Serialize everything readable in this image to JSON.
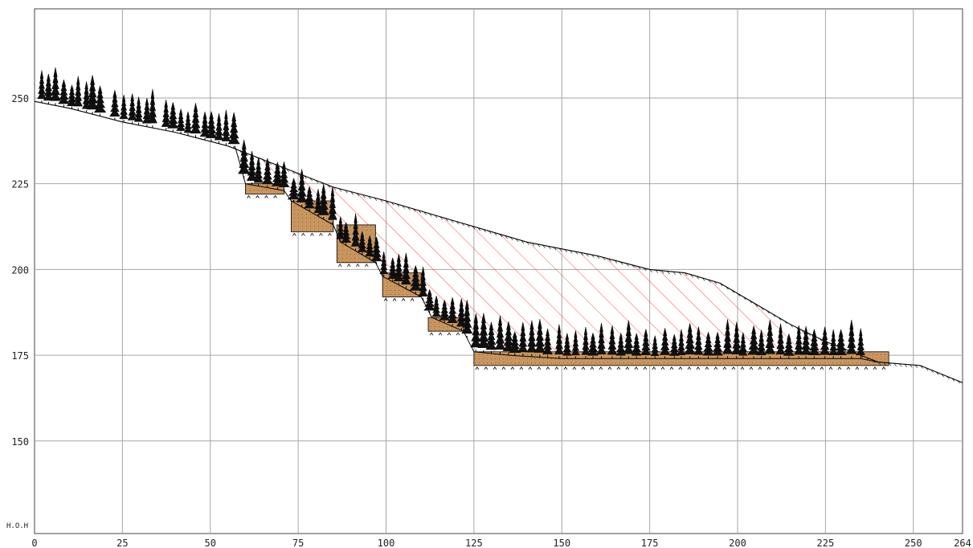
{
  "figure": {
    "height_label": "H.O.H",
    "x_ticks": [
      "0",
      "25",
      "50",
      "75",
      "100",
      "125",
      "150",
      "175",
      "200",
      "225",
      "250",
      "264"
    ],
    "y_ticks": [
      "150",
      "175",
      "200",
      "225",
      "250"
    ]
  },
  "chart_data": {
    "type": "cross-section",
    "x_range": [
      0,
      264
    ],
    "y_range": [
      123,
      276
    ],
    "grid": true,
    "existing_ground": [
      [
        0,
        249
      ],
      [
        10,
        247
      ],
      [
        25,
        243
      ],
      [
        40,
        240
      ],
      [
        55,
        236
      ],
      [
        70,
        230
      ],
      [
        85,
        224
      ],
      [
        100,
        220
      ],
      [
        120,
        214
      ],
      [
        140,
        208
      ],
      [
        160,
        204
      ],
      [
        175,
        200
      ],
      [
        185,
        199
      ],
      [
        195,
        196
      ],
      [
        205,
        190
      ],
      [
        215,
        184
      ],
      [
        225,
        179
      ],
      [
        235,
        175
      ],
      [
        240,
        173
      ],
      [
        252,
        172
      ],
      [
        264,
        167
      ]
    ],
    "excavation_line": [
      [
        57,
        236
      ],
      [
        60,
        225
      ],
      [
        71,
        223
      ],
      [
        73,
        220
      ],
      [
        85,
        213
      ],
      [
        87,
        208
      ],
      [
        97,
        202
      ],
      [
        99,
        198
      ],
      [
        110,
        192
      ],
      [
        113,
        186
      ],
      [
        122,
        182
      ],
      [
        125,
        176
      ],
      [
        135,
        175
      ],
      [
        150,
        174
      ],
      [
        175,
        174
      ],
      [
        200,
        174
      ],
      [
        225,
        174
      ],
      [
        235,
        174
      ],
      [
        240,
        173
      ]
    ],
    "colors": {
      "grid": "#a6a6a6",
      "hatch": "#e8413a",
      "fill": "#c8955e",
      "ground": "#000000"
    },
    "steps": [
      {
        "x_start": 60,
        "x_end": 71,
        "top": 225,
        "bottom": 222
      },
      {
        "x_start": 73,
        "x_end": 85,
        "top": 220,
        "bottom": 211
      },
      {
        "x_start": 86,
        "x_end": 97,
        "top": 213,
        "bottom": 202
      },
      {
        "x_start": 99,
        "x_end": 110,
        "top": 199,
        "bottom": 192
      },
      {
        "x_start": 112,
        "x_end": 122,
        "top": 186,
        "bottom": 182
      },
      {
        "x_start": 125,
        "x_end": 243,
        "top": 176,
        "bottom": 172
      }
    ],
    "tree_zones": [
      {
        "x_start": 1,
        "x_end": 20,
        "n": 9
      },
      {
        "x_start": 22,
        "x_end": 35,
        "n": 6
      },
      {
        "x_start": 36,
        "x_end": 58,
        "n": 10
      },
      {
        "x_start": 58,
        "x_end": 75,
        "n": 7
      },
      {
        "x_start": 75,
        "x_end": 90,
        "n": 7
      },
      {
        "x_start": 90,
        "x_end": 105,
        "n": 7
      },
      {
        "x_start": 105,
        "x_end": 120,
        "n": 7
      },
      {
        "x_start": 120,
        "x_end": 140,
        "n": 9
      },
      {
        "x_start": 140,
        "x_end": 236,
        "n": 38
      }
    ]
  }
}
